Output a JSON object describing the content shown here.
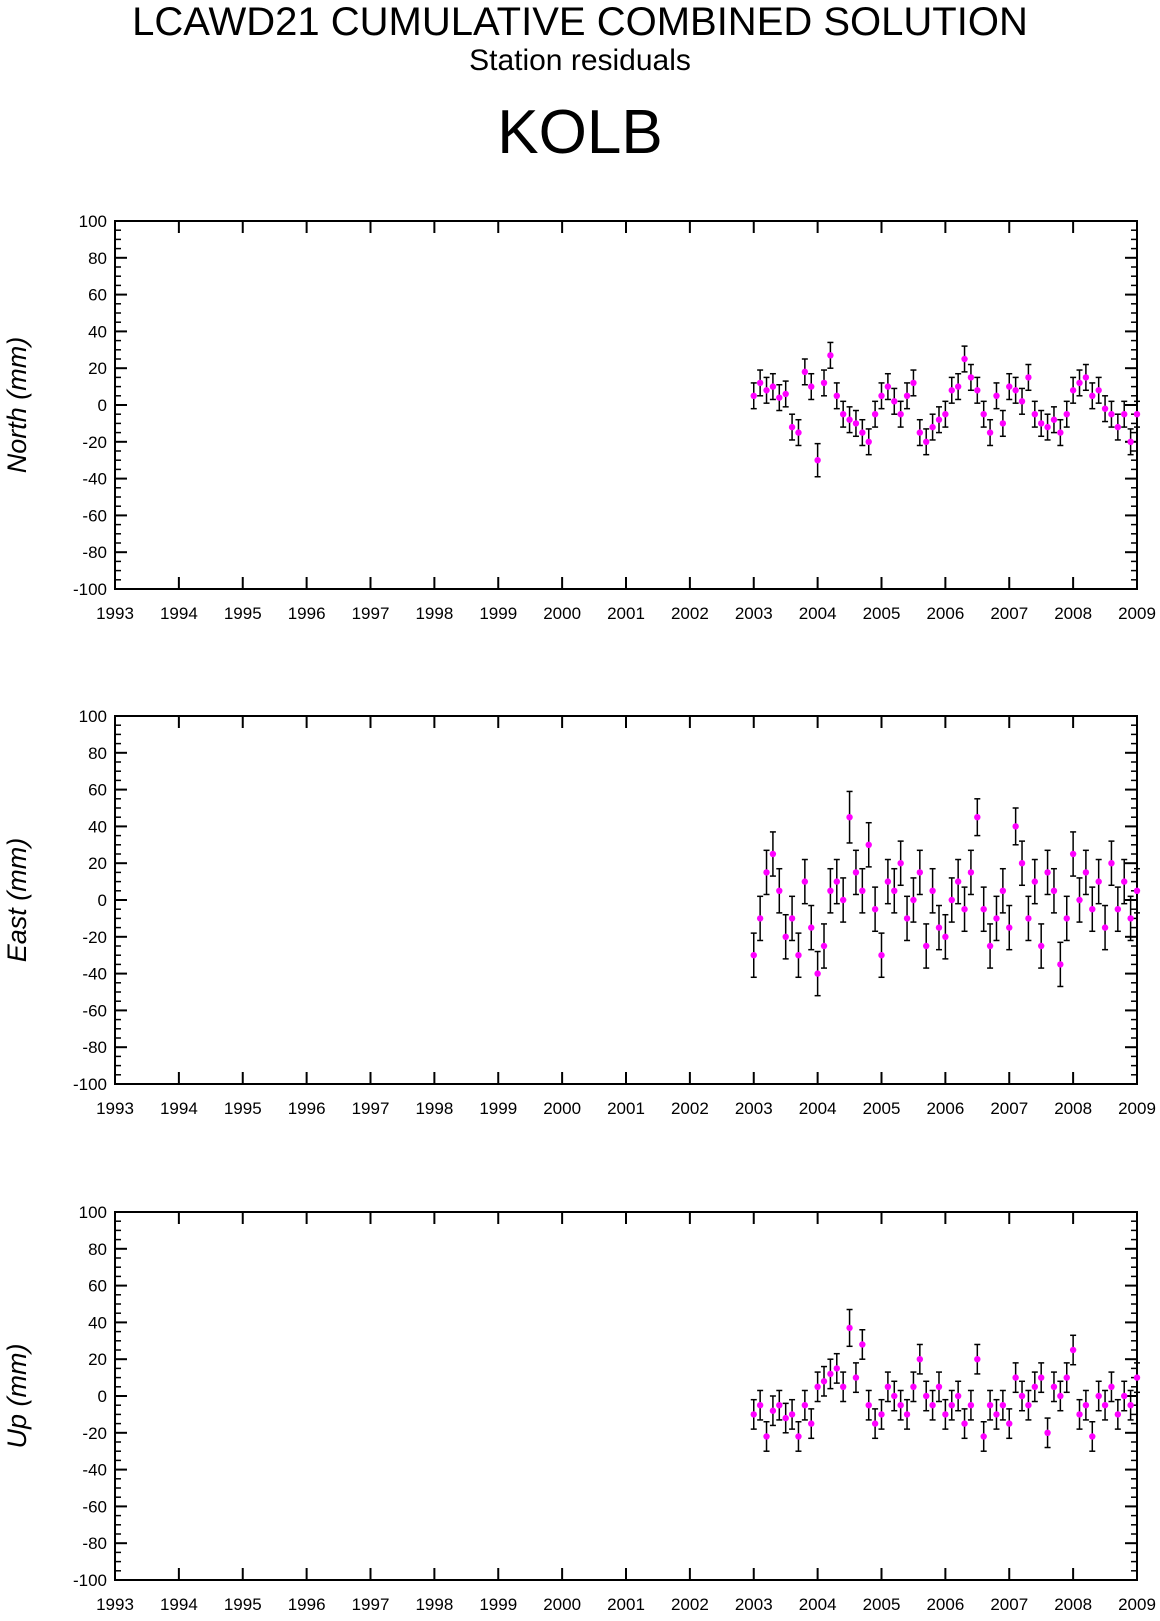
{
  "header": {
    "title": "LCAWD21 CUMULATIVE COMBINED SOLUTION",
    "subtitle": "Station residuals",
    "station": "KOLB"
  },
  "colors": {
    "marker": "#ff00ff",
    "errorbar": "#000000",
    "axis": "#000000"
  },
  "chart_data": [
    {
      "type": "scatter",
      "panel": "north",
      "ylabel": "North (mm)",
      "xlabel": "",
      "xlim": [
        1993,
        2009
      ],
      "ylim": [
        -100,
        100
      ],
      "x_ticks": [
        "1993",
        "1994",
        "1995",
        "1996",
        "1997",
        "1998",
        "1999",
        "2000",
        "2001",
        "2002",
        "2003",
        "2004",
        "2005",
        "2006",
        "2007",
        "2008",
        "2009"
      ],
      "y_ticks": [
        "100",
        "80",
        "60",
        "40",
        "20",
        "0",
        "-20",
        "-40",
        "-60",
        "-80",
        "-100"
      ],
      "series": [
        {
          "x": [
            2003.0,
            2003.1,
            2003.2,
            2003.3,
            2003.4,
            2003.5,
            2003.6,
            2003.7,
            2003.8,
            2003.9,
            2004.0,
            2004.1,
            2004.2,
            2004.3,
            2004.4,
            2004.5,
            2004.6,
            2004.7,
            2004.8,
            2004.9,
            2005.0,
            2005.1,
            2005.2,
            2005.3,
            2005.4,
            2005.5,
            2005.6,
            2005.7,
            2005.8,
            2005.9,
            2006.0,
            2006.1,
            2006.2,
            2006.3,
            2006.4,
            2006.5,
            2006.6,
            2006.7,
            2006.8,
            2006.9,
            2007.0,
            2007.1,
            2007.2,
            2007.3,
            2007.4,
            2007.5,
            2007.6,
            2007.7,
            2007.8,
            2007.9,
            2008.0,
            2008.1,
            2008.2,
            2008.3,
            2008.4,
            2008.5,
            2008.6,
            2008.7,
            2008.8,
            2008.9,
            2009.0
          ],
          "y": [
            5,
            12,
            8,
            10,
            4,
            6,
            -12,
            -15,
            18,
            10,
            -30,
            12,
            27,
            5,
            -5,
            -8,
            -10,
            -15,
            -20,
            -5,
            5,
            10,
            2,
            -5,
            5,
            12,
            -15,
            -20,
            -12,
            -8,
            -5,
            8,
            10,
            25,
            15,
            8,
            -5,
            -15,
            5,
            -10,
            10,
            8,
            2,
            15,
            -5,
            -10,
            -12,
            -8,
            -15,
            -5,
            8,
            12,
            15,
            5,
            8,
            -2,
            -5,
            -12,
            -5,
            -20,
            -5
          ],
          "err": [
            7,
            7,
            7,
            7,
            7,
            7,
            7,
            7,
            7,
            7,
            9,
            7,
            7,
            7,
            7,
            7,
            7,
            7,
            7,
            7,
            7,
            7,
            7,
            7,
            7,
            7,
            7,
            7,
            7,
            7,
            7,
            7,
            7,
            7,
            7,
            7,
            7,
            7,
            7,
            7,
            7,
            7,
            7,
            7,
            7,
            7,
            7,
            7,
            7,
            7,
            7,
            7,
            7,
            7,
            7,
            7,
            7,
            7,
            7,
            7,
            7
          ]
        }
      ]
    },
    {
      "type": "scatter",
      "panel": "east",
      "ylabel": "East (mm)",
      "xlabel": "",
      "xlim": [
        1993,
        2009
      ],
      "ylim": [
        -100,
        100
      ],
      "x_ticks": [
        "1993",
        "1994",
        "1995",
        "1996",
        "1997",
        "1998",
        "1999",
        "2000",
        "2001",
        "2002",
        "2003",
        "2004",
        "2005",
        "2006",
        "2007",
        "2008",
        "2009"
      ],
      "y_ticks": [
        "100",
        "80",
        "60",
        "40",
        "20",
        "0",
        "-20",
        "-40",
        "-60",
        "-80",
        "-100"
      ],
      "series": [
        {
          "x": [
            2003.0,
            2003.1,
            2003.2,
            2003.3,
            2003.4,
            2003.5,
            2003.6,
            2003.7,
            2003.8,
            2003.9,
            2004.0,
            2004.1,
            2004.2,
            2004.3,
            2004.4,
            2004.5,
            2004.6,
            2004.7,
            2004.8,
            2004.9,
            2005.0,
            2005.1,
            2005.2,
            2005.3,
            2005.4,
            2005.5,
            2005.6,
            2005.7,
            2005.8,
            2005.9,
            2006.0,
            2006.1,
            2006.2,
            2006.3,
            2006.4,
            2006.5,
            2006.6,
            2006.7,
            2006.8,
            2006.9,
            2007.0,
            2007.1,
            2007.2,
            2007.3,
            2007.4,
            2007.5,
            2007.6,
            2007.7,
            2007.8,
            2007.9,
            2008.0,
            2008.1,
            2008.2,
            2008.3,
            2008.4,
            2008.5,
            2008.6,
            2008.7,
            2008.8,
            2008.9,
            2009.0
          ],
          "y": [
            -30,
            -10,
            15,
            25,
            5,
            -20,
            -10,
            -30,
            10,
            -15,
            -40,
            -25,
            5,
            10,
            0,
            45,
            15,
            5,
            30,
            -5,
            -30,
            10,
            5,
            20,
            -10,
            0,
            15,
            -25,
            5,
            -15,
            -20,
            0,
            10,
            -5,
            15,
            45,
            -5,
            -25,
            -10,
            5,
            -15,
            40,
            20,
            -10,
            10,
            -25,
            15,
            5,
            -35,
            -10,
            25,
            0,
            15,
            -5,
            10,
            -15,
            20,
            -5,
            10,
            -10,
            5
          ],
          "err": [
            12,
            12,
            12,
            12,
            12,
            12,
            12,
            12,
            12,
            12,
            12,
            12,
            12,
            12,
            12,
            14,
            12,
            12,
            12,
            12,
            12,
            12,
            12,
            12,
            12,
            12,
            12,
            12,
            12,
            12,
            12,
            12,
            12,
            12,
            12,
            10,
            12,
            12,
            12,
            12,
            12,
            10,
            12,
            12,
            12,
            12,
            12,
            12,
            12,
            12,
            12,
            12,
            12,
            12,
            12,
            12,
            12,
            12,
            12,
            12,
            12
          ]
        }
      ]
    },
    {
      "type": "scatter",
      "panel": "up",
      "ylabel": "Up (mm)",
      "xlabel": "",
      "xlim": [
        1993,
        2009
      ],
      "ylim": [
        -100,
        100
      ],
      "x_ticks": [
        "1993",
        "1994",
        "1995",
        "1996",
        "1997",
        "1998",
        "1999",
        "2000",
        "2001",
        "2002",
        "2003",
        "2004",
        "2005",
        "2006",
        "2007",
        "2008",
        "2009"
      ],
      "y_ticks": [
        "100",
        "80",
        "60",
        "40",
        "20",
        "0",
        "-20",
        "-40",
        "-60",
        "-80",
        "-100"
      ],
      "series": [
        {
          "x": [
            2003.0,
            2003.1,
            2003.2,
            2003.3,
            2003.4,
            2003.5,
            2003.6,
            2003.7,
            2003.8,
            2003.9,
            2004.0,
            2004.1,
            2004.2,
            2004.3,
            2004.4,
            2004.5,
            2004.6,
            2004.7,
            2004.8,
            2004.9,
            2005.0,
            2005.1,
            2005.2,
            2005.3,
            2005.4,
            2005.5,
            2005.6,
            2005.7,
            2005.8,
            2005.9,
            2006.0,
            2006.1,
            2006.2,
            2006.3,
            2006.4,
            2006.5,
            2006.6,
            2006.7,
            2006.8,
            2006.9,
            2007.0,
            2007.1,
            2007.2,
            2007.3,
            2007.4,
            2007.5,
            2007.6,
            2007.7,
            2007.8,
            2007.9,
            2008.0,
            2008.1,
            2008.2,
            2008.3,
            2008.4,
            2008.5,
            2008.6,
            2008.7,
            2008.8,
            2008.9,
            2009.0
          ],
          "y": [
            -10,
            -5,
            -22,
            -8,
            -5,
            -12,
            -10,
            -22,
            -5,
            -15,
            5,
            8,
            12,
            15,
            5,
            37,
            10,
            28,
            -5,
            -15,
            -10,
            5,
            0,
            -5,
            -10,
            5,
            20,
            0,
            -5,
            5,
            -10,
            -5,
            0,
            -15,
            -5,
            20,
            -22,
            -5,
            -10,
            -5,
            -15,
            10,
            0,
            -5,
            5,
            10,
            -20,
            5,
            0,
            10,
            25,
            -10,
            -5,
            -22,
            0,
            -5,
            5,
            -10,
            0,
            -5,
            10
          ],
          "err": [
            8,
            8,
            8,
            8,
            8,
            8,
            8,
            8,
            8,
            8,
            8,
            8,
            8,
            8,
            8,
            10,
            8,
            8,
            8,
            8,
            8,
            8,
            8,
            8,
            8,
            8,
            8,
            8,
            8,
            8,
            8,
            8,
            8,
            8,
            8,
            8,
            8,
            8,
            8,
            8,
            8,
            8,
            8,
            8,
            8,
            8,
            8,
            8,
            8,
            8,
            8,
            8,
            8,
            8,
            8,
            8,
            8,
            8,
            8,
            8,
            8
          ]
        }
      ]
    }
  ]
}
